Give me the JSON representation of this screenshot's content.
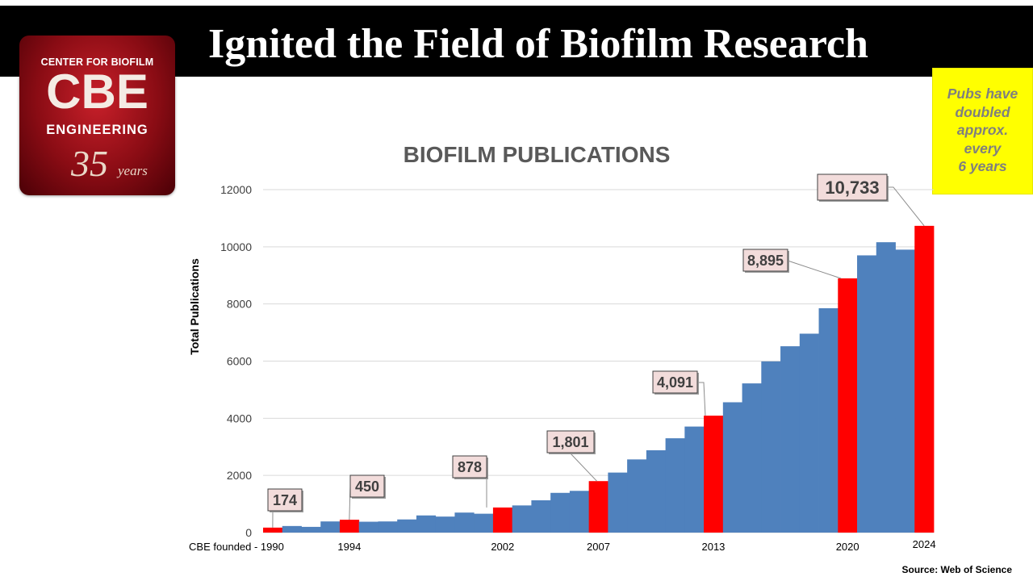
{
  "slide": {
    "title": "Ignited the Field of Biofilm Research",
    "logo": {
      "line1": "CENTER FOR BIOFILM",
      "line2": "CBE",
      "line3": "ENGINEERING",
      "years_number": "35",
      "years_word": "years"
    },
    "note_lines": [
      "Pubs have",
      "doubled",
      "approx.",
      "every",
      "6 years"
    ],
    "source": "Source: Web of Science"
  },
  "chart_data": {
    "type": "bar",
    "title": "BIOFILM PUBLICATIONS",
    "xlabel": "",
    "ylabel": "Total Publications",
    "ylim": [
      0,
      12000
    ],
    "y_ticks": [
      0,
      2000,
      4000,
      6000,
      8000,
      10000,
      12000
    ],
    "grid": true,
    "categories": [
      "1990",
      "1991",
      "1992",
      "1993",
      "1994",
      "1995",
      "1996",
      "1997",
      "1998",
      "1999",
      "2000",
      "2001",
      "2002",
      "2003",
      "2004",
      "2005",
      "2006",
      "2007",
      "2008",
      "2009",
      "2010",
      "2011",
      "2012",
      "2013",
      "2014",
      "2015",
      "2016",
      "2017",
      "2018",
      "2019",
      "2020",
      "2021",
      "2022",
      "2023",
      "2024"
    ],
    "x_tick_labels": [
      {
        "year": "1990",
        "text": "CBE founded - 1990"
      },
      {
        "year": "1994",
        "text": "1994"
      },
      {
        "year": "2002",
        "text": "2002"
      },
      {
        "year": "2007",
        "text": "2007"
      },
      {
        "year": "2013",
        "text": "2013"
      },
      {
        "year": "2020",
        "text": "2020"
      },
      {
        "year": "2024",
        "text": "2024"
      }
    ],
    "values": [
      174,
      230,
      200,
      390,
      450,
      380,
      390,
      460,
      600,
      560,
      700,
      660,
      878,
      950,
      1130,
      1390,
      1460,
      1801,
      2100,
      2560,
      2880,
      3300,
      3710,
      4091,
      4560,
      5220,
      5990,
      6520,
      6960,
      7850,
      8895,
      9700,
      10160,
      9900,
      10733
    ],
    "highlighted": [
      "1990",
      "1994",
      "2002",
      "2007",
      "2013",
      "2020",
      "2024"
    ],
    "colors": {
      "bar": "#4f81bd",
      "highlight": "#ff0000",
      "callout_bg": "#f2dcdb",
      "grid": "#d9d9d9"
    },
    "callouts": [
      {
        "year": "1990",
        "text": "174"
      },
      {
        "year": "1994",
        "text": "450"
      },
      {
        "year": "2002",
        "text": "878"
      },
      {
        "year": "2007",
        "text": "1,801"
      },
      {
        "year": "2013",
        "text": "4,091"
      },
      {
        "year": "2020",
        "text": "8,895"
      },
      {
        "year": "2024",
        "text": "10,733"
      }
    ]
  }
}
